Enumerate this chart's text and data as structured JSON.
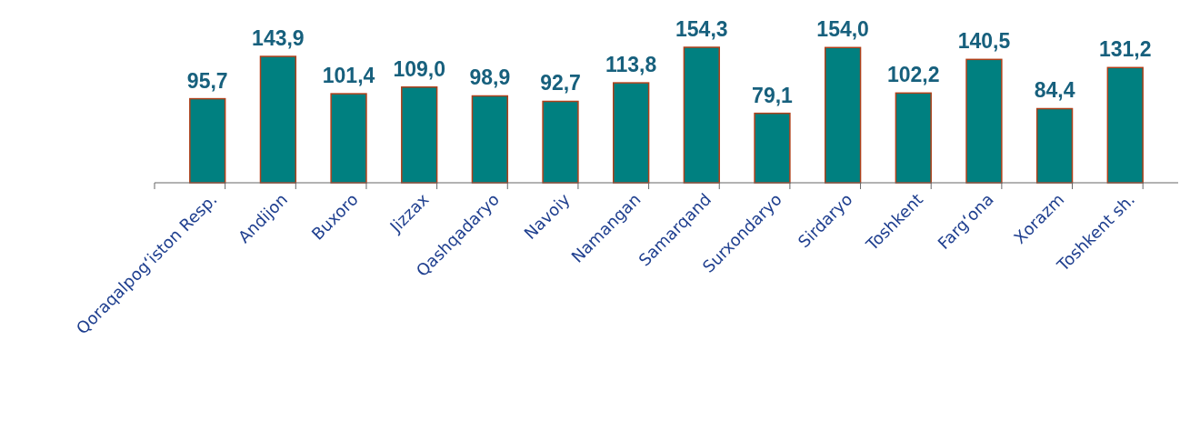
{
  "chart_data": {
    "type": "bar",
    "categories": [
      "Qoraqalpogʻiston Resp.",
      "Andijon",
      "Buxoro",
      "Jizzax",
      "Qashqadaryo",
      "Navoiy",
      "Namangan",
      "Samarqand",
      "Surxondaryo",
      "Sirdaryo",
      "Toshkent",
      "Fargʻona",
      "Xorazm",
      "Toshkent sh."
    ],
    "values": [
      95.7,
      143.9,
      101.4,
      109.0,
      98.9,
      92.7,
      113.8,
      154.3,
      79.1,
      154.0,
      102.2,
      140.5,
      84.4,
      131.2
    ],
    "value_labels": [
      "95,7",
      "143,9",
      "101,4",
      "109,0",
      "98,9",
      "92,7",
      "113,8",
      "154,3",
      "79,1",
      "154,0",
      "102,2",
      "140,5",
      "84,4",
      "131,2"
    ],
    "color": "#008080"
  }
}
